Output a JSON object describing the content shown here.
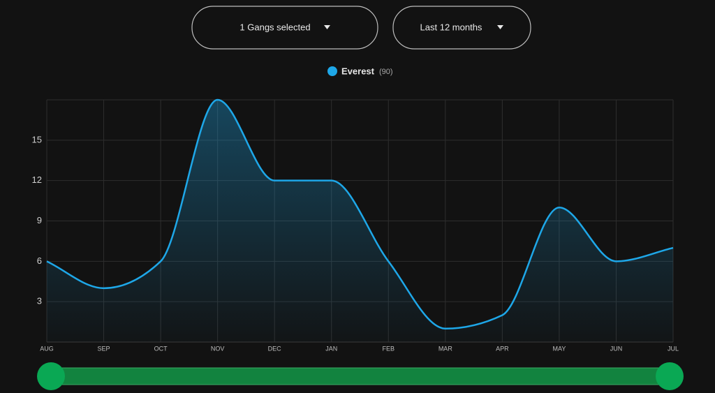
{
  "controls": {
    "gang_select": "1 Gangs selected",
    "period_select": "Last 12 months"
  },
  "chart_data": {
    "type": "area",
    "categories": [
      "AUG",
      "SEP",
      "OCT",
      "NOV",
      "DEC",
      "JAN",
      "FEB",
      "MAR",
      "APR",
      "MAY",
      "JUN",
      "JUL"
    ],
    "series": [
      {
        "name": "Everest",
        "total_label": "(90)",
        "color": "#1ea7e8",
        "values": [
          6,
          4,
          6,
          18,
          12,
          12,
          6,
          1,
          2,
          10,
          6,
          7
        ]
      }
    ],
    "ylim": [
      0,
      18
    ],
    "yticks": [
      3,
      6,
      9,
      12,
      15
    ],
    "grid": true
  }
}
